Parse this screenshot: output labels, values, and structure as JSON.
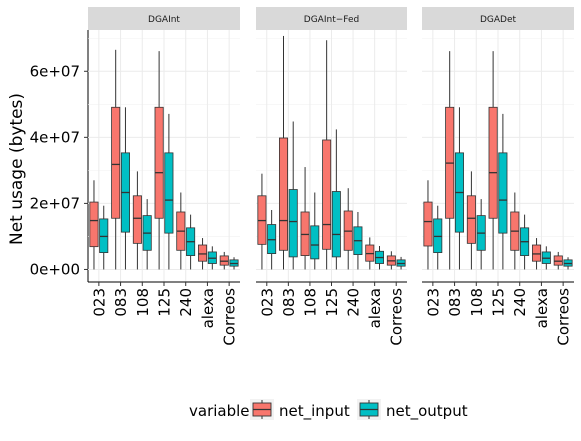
{
  "chart_data": {
    "type": "boxplot",
    "ylabel": "Net usage (bytes)",
    "yticks": [
      {
        "value": 0,
        "label": "0e+00"
      },
      {
        "value": 20000000,
        "label": "2e+07"
      },
      {
        "value": 40000000,
        "label": "4e+07"
      },
      {
        "value": 60000000,
        "label": "6e+07"
      }
    ],
    "ylim": [
      -3800000,
      72500000
    ],
    "categories": [
      "023",
      "083",
      "108",
      "125",
      "240",
      "alexa",
      "Correos"
    ],
    "legend": {
      "title": "variable",
      "position": "bottom"
    },
    "series_colors": {
      "net_input": "#F8766D",
      "net_output": "#00BFC4"
    },
    "series_names": [
      "net_input",
      "net_output"
    ],
    "panels": [
      {
        "title": "DGAInt",
        "groups": [
          {
            "category": "023",
            "net_input": {
              "min": 0,
              "q1": 6900000,
              "median": 14800000,
              "q3": 20400000,
              "max": 27000000
            },
            "net_output": {
              "min": 0,
              "q1": 5100000,
              "median": 10000000,
              "q3": 15300000,
              "max": 19300000
            }
          },
          {
            "category": "083",
            "net_input": {
              "min": 0,
              "q1": 15500000,
              "median": 31800000,
              "q3": 49100000,
              "max": 66500000
            },
            "net_output": {
              "min": 0,
              "q1": 11300000,
              "median": 23300000,
              "q3": 35300000,
              "max": 49100000
            }
          },
          {
            "category": "108",
            "net_input": {
              "min": 0,
              "q1": 7900000,
              "median": 15500000,
              "q3": 22300000,
              "max": 29700000
            },
            "net_output": {
              "min": 0,
              "q1": 5800000,
              "median": 11000000,
              "q3": 16300000,
              "max": 21300000
            }
          },
          {
            "category": "125",
            "net_input": {
              "min": 0,
              "q1": 15500000,
              "median": 29300000,
              "q3": 49100000,
              "max": 66100000
            },
            "net_output": {
              "min": 0,
              "q1": 11000000,
              "median": 21000000,
              "q3": 35300000,
              "max": 47100000
            }
          },
          {
            "category": "240",
            "net_input": {
              "min": 0,
              "q1": 5800000,
              "median": 11600000,
              "q3": 17400000,
              "max": 23300000
            },
            "net_output": {
              "min": 0,
              "q1": 4200000,
              "median": 8400000,
              "q3": 12600000,
              "max": 16600000
            }
          },
          {
            "category": "alexa",
            "net_input": {
              "min": 0,
              "q1": 2500000,
              "median": 4700000,
              "q3": 7400000,
              "max": 9500000
            },
            "net_output": {
              "min": 0,
              "q1": 1800000,
              "median": 3400000,
              "q3": 5300000,
              "max": 7000000
            }
          },
          {
            "category": "Correos",
            "net_input": {
              "min": 0,
              "q1": 1300000,
              "median": 2500000,
              "q3": 4100000,
              "max": 5300000
            },
            "net_output": {
              "min": 0,
              "q1": 1000000,
              "median": 1800000,
              "q3": 2900000,
              "max": 3700000
            }
          }
        ]
      },
      {
        "title": "DGAInt−Fed",
        "groups": [
          {
            "category": "023",
            "net_input": {
              "min": 0,
              "q1": 7600000,
              "median": 14800000,
              "q3": 22300000,
              "max": 29000000
            },
            "net_output": {
              "min": 0,
              "q1": 4800000,
              "median": 9000000,
              "q3": 13600000,
              "max": 18000000
            }
          },
          {
            "category": "083",
            "net_input": {
              "min": 0,
              "q1": 5800000,
              "median": 14800000,
              "q3": 39800000,
              "max": 70700000
            },
            "net_output": {
              "min": 0,
              "q1": 3800000,
              "median": 14500000,
              "q3": 24200000,
              "max": 44800000
            }
          },
          {
            "category": "108",
            "net_input": {
              "min": 0,
              "q1": 4200000,
              "median": 10600000,
              "q3": 17400000,
              "max": 31000000
            },
            "net_output": {
              "min": 0,
              "q1": 3200000,
              "median": 7400000,
              "q3": 13200000,
              "max": 23300000
            }
          },
          {
            "category": "125",
            "net_input": {
              "min": 0,
              "q1": 6100000,
              "median": 13600000,
              "q3": 39200000,
              "max": 69400000
            },
            "net_output": {
              "min": 0,
              "q1": 3800000,
              "median": 10600000,
              "q3": 23600000,
              "max": 42400000
            }
          },
          {
            "category": "240",
            "net_input": {
              "min": 0,
              "q1": 5800000,
              "median": 11600000,
              "q3": 17700000,
              "max": 24600000
            },
            "net_output": {
              "min": 0,
              "q1": 4500000,
              "median": 8700000,
              "q3": 12900000,
              "max": 17400000
            }
          },
          {
            "category": "alexa",
            "net_input": {
              "min": 0,
              "q1": 2500000,
              "median": 4800000,
              "q3": 7400000,
              "max": 9700000
            },
            "net_output": {
              "min": 0,
              "q1": 1800000,
              "median": 3600000,
              "q3": 5500000,
              "max": 7100000
            }
          },
          {
            "category": "Correos",
            "net_input": {
              "min": 0,
              "q1": 1300000,
              "median": 2600000,
              "q3": 4100000,
              "max": 5500000
            },
            "net_output": {
              "min": 0,
              "q1": 1000000,
              "median": 1800000,
              "q3": 2900000,
              "max": 3800000
            }
          }
        ]
      },
      {
        "title": "DGADet",
        "groups": [
          {
            "category": "023",
            "net_input": {
              "min": 0,
              "q1": 7100000,
              "median": 14500000,
              "q3": 20400000,
              "max": 27000000
            },
            "net_output": {
              "min": 0,
              "q1": 5100000,
              "median": 10000000,
              "q3": 15300000,
              "max": 19300000
            }
          },
          {
            "category": "083",
            "net_input": {
              "min": 0,
              "q1": 15500000,
              "median": 32200000,
              "q3": 49100000,
              "max": 66100000
            },
            "net_output": {
              "min": 0,
              "q1": 11300000,
              "median": 23300000,
              "q3": 35300000,
              "max": 49100000
            }
          },
          {
            "category": "108",
            "net_input": {
              "min": 0,
              "q1": 7900000,
              "median": 15500000,
              "q3": 22300000,
              "max": 29700000
            },
            "net_output": {
              "min": 0,
              "q1": 5800000,
              "median": 11000000,
              "q3": 16300000,
              "max": 21300000
            }
          },
          {
            "category": "125",
            "net_input": {
              "min": 0,
              "q1": 15500000,
              "median": 29300000,
              "q3": 49100000,
              "max": 66100000
            },
            "net_output": {
              "min": 0,
              "q1": 11000000,
              "median": 21000000,
              "q3": 35300000,
              "max": 47100000
            }
          },
          {
            "category": "240",
            "net_input": {
              "min": 0,
              "q1": 5800000,
              "median": 11600000,
              "q3": 17400000,
              "max": 23300000
            },
            "net_output": {
              "min": 0,
              "q1": 4200000,
              "median": 8400000,
              "q3": 12600000,
              "max": 16600000
            }
          },
          {
            "category": "alexa",
            "net_input": {
              "min": 0,
              "q1": 2500000,
              "median": 4700000,
              "q3": 7400000,
              "max": 9500000
            },
            "net_output": {
              "min": 0,
              "q1": 1800000,
              "median": 3400000,
              "q3": 5300000,
              "max": 7000000
            }
          },
          {
            "category": "Correos",
            "net_input": {
              "min": 0,
              "q1": 1300000,
              "median": 2500000,
              "q3": 4100000,
              "max": 5300000
            },
            "net_output": {
              "min": 0,
              "q1": 1000000,
              "median": 1800000,
              "q3": 2900000,
              "max": 3700000
            }
          }
        ]
      }
    ]
  }
}
